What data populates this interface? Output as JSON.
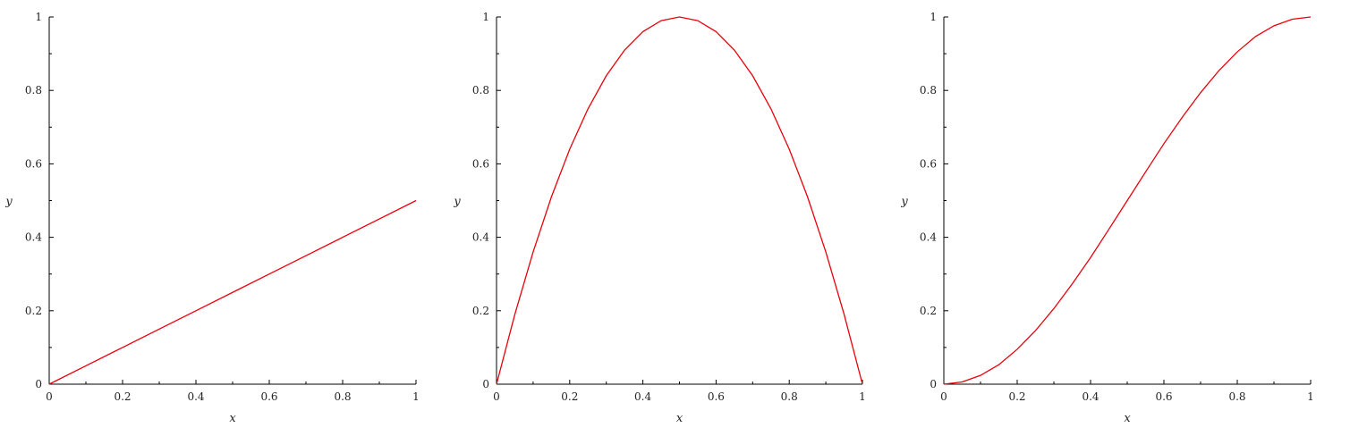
{
  "chart_data": [
    {
      "type": "line",
      "title": "",
      "xlabel": "x",
      "ylabel": "y",
      "xlim": [
        0,
        1
      ],
      "ylim": [
        0,
        1
      ],
      "x_ticks": [
        0,
        0.2,
        0.4,
        0.6,
        0.8,
        1
      ],
      "x_tick_labels": [
        "0",
        "0.2",
        "0.4",
        "0.6",
        "0.8",
        "1"
      ],
      "y_ticks": [
        0,
        0.2,
        0.4,
        0.6,
        0.8,
        1
      ],
      "y_tick_labels": [
        "0",
        "0.2",
        "0.4",
        "0.6",
        "0.8",
        "1"
      ],
      "grid": false,
      "legend": "none",
      "series": [
        {
          "color": "#e8000b",
          "x": [
            0,
            0.1,
            0.2,
            0.3,
            0.4,
            0.5,
            0.6,
            0.7,
            0.8,
            0.9,
            1.0
          ],
          "y": [
            0,
            0.05,
            0.1,
            0.15,
            0.2,
            0.25,
            0.3,
            0.35,
            0.4,
            0.45,
            0.5
          ]
        }
      ]
    },
    {
      "type": "line",
      "title": "",
      "xlabel": "x",
      "ylabel": "y",
      "xlim": [
        0,
        1
      ],
      "ylim": [
        0,
        1
      ],
      "x_ticks": [
        0,
        0.2,
        0.4,
        0.6,
        0.8,
        1
      ],
      "x_tick_labels": [
        "0",
        "0.2",
        "0.4",
        "0.6",
        "0.8",
        "1"
      ],
      "y_ticks": [
        0,
        0.2,
        0.4,
        0.6,
        0.8,
        1
      ],
      "y_tick_labels": [
        "0",
        "0.2",
        "0.4",
        "0.6",
        "0.8",
        "1"
      ],
      "grid": false,
      "legend": "none",
      "series": [
        {
          "color": "#e8000b",
          "x": [
            0,
            0.05,
            0.1,
            0.15,
            0.2,
            0.25,
            0.3,
            0.35,
            0.4,
            0.45,
            0.5,
            0.55,
            0.6,
            0.65,
            0.7,
            0.75,
            0.8,
            0.85,
            0.9,
            0.95,
            1.0
          ],
          "y": [
            0,
            0.19,
            0.36,
            0.51,
            0.64,
            0.75,
            0.84,
            0.91,
            0.96,
            0.99,
            1.0,
            0.99,
            0.96,
            0.91,
            0.84,
            0.75,
            0.64,
            0.51,
            0.36,
            0.19,
            0
          ]
        }
      ]
    },
    {
      "type": "line",
      "title": "",
      "xlabel": "x",
      "ylabel": "y",
      "xlim": [
        0,
        1
      ],
      "ylim": [
        0,
        1
      ],
      "x_ticks": [
        0,
        0.2,
        0.4,
        0.6,
        0.8,
        1
      ],
      "x_tick_labels": [
        "0",
        "0.2",
        "0.4",
        "0.6",
        "0.8",
        "1"
      ],
      "y_ticks": [
        0,
        0.2,
        0.4,
        0.6,
        0.8,
        1
      ],
      "y_tick_labels": [
        "0",
        "0.2",
        "0.4",
        "0.6",
        "0.8",
        "1"
      ],
      "grid": false,
      "legend": "none",
      "series": [
        {
          "color": "#e8000b",
          "x": [
            0,
            0.05,
            0.1,
            0.15,
            0.2,
            0.25,
            0.3,
            0.35,
            0.4,
            0.45,
            0.5,
            0.55,
            0.6,
            0.65,
            0.7,
            0.75,
            0.8,
            0.85,
            0.9,
            0.95,
            1.0
          ],
          "y": [
            0,
            0.006,
            0.024,
            0.053,
            0.095,
            0.146,
            0.206,
            0.273,
            0.345,
            0.422,
            0.5,
            0.578,
            0.655,
            0.727,
            0.794,
            0.854,
            0.905,
            0.947,
            0.976,
            0.994,
            1.0
          ]
        }
      ]
    }
  ]
}
